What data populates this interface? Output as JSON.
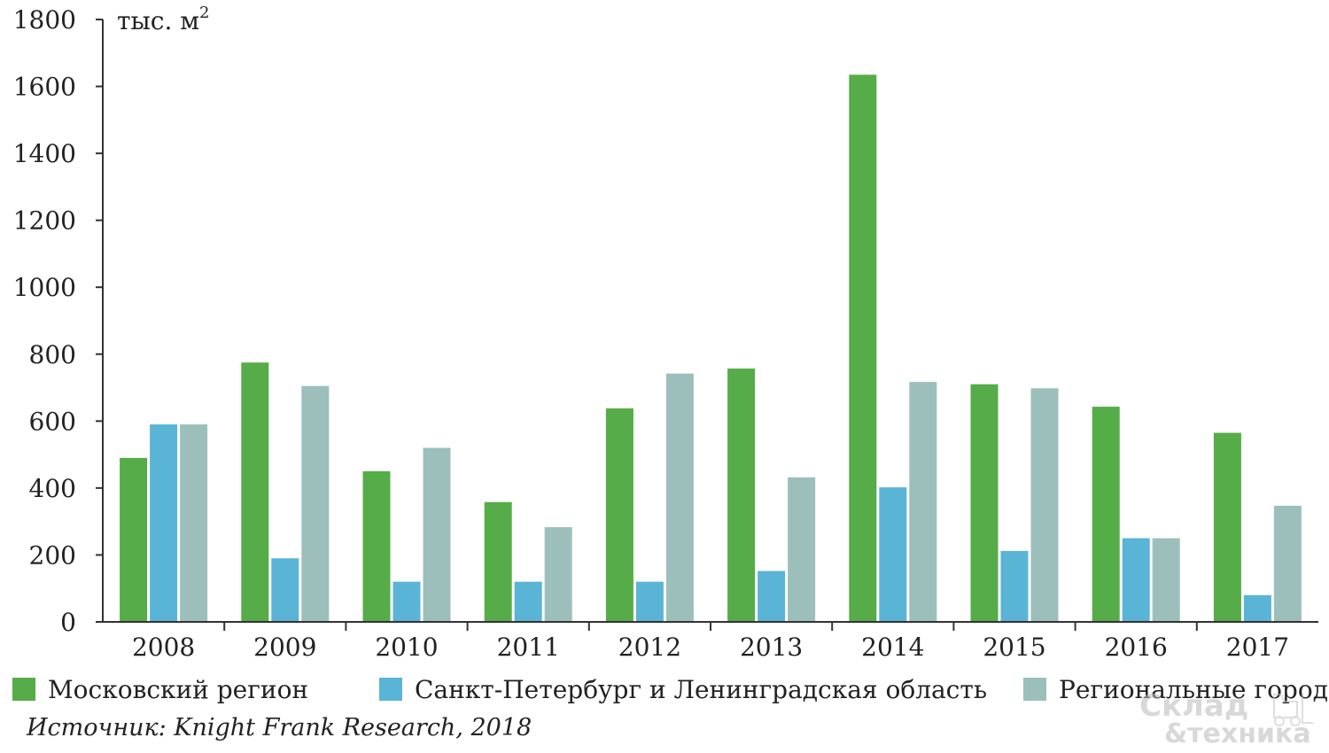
{
  "unit": {
    "prefix": "тыс. м",
    "sup": "2"
  },
  "legend": {
    "moscow": "Московский регион",
    "spb": "Санкт-Петербург и Ленинградская область",
    "regions": "Региональные города"
  },
  "source": "Источник: Knight Frank Research, 2018",
  "watermark": {
    "line1": "Склад",
    "line2": "&техника"
  },
  "colors": {
    "moscow": "#56ac48",
    "spb": "#5ab4d6",
    "regions": "#9cbfbb",
    "axis": "#333333"
  },
  "chart_data": {
    "type": "bar",
    "categories": [
      "2008",
      "2009",
      "2010",
      "2011",
      "2012",
      "2013",
      "2014",
      "2015",
      "2016",
      "2017"
    ],
    "series": [
      {
        "name": "Московский регион",
        "values": [
          490,
          775,
          450,
          358,
          638,
          757,
          1635,
          710,
          643,
          565
        ]
      },
      {
        "name": "Санкт-Петербург и Ленинградская область",
        "values": [
          590,
          190,
          120,
          120,
          120,
          152,
          402,
          212,
          250,
          80
        ]
      },
      {
        "name": "Региональные города",
        "values": [
          590,
          705,
          520,
          283,
          742,
          432,
          717,
          698,
          250,
          347
        ]
      }
    ],
    "yticks": [
      0,
      200,
      400,
      600,
      800,
      1000,
      1200,
      1400,
      1600,
      1800
    ],
    "ylim": [
      0,
      1800
    ],
    "ylabel": "тыс. м2",
    "legend_position": "bottom",
    "grid": false
  }
}
